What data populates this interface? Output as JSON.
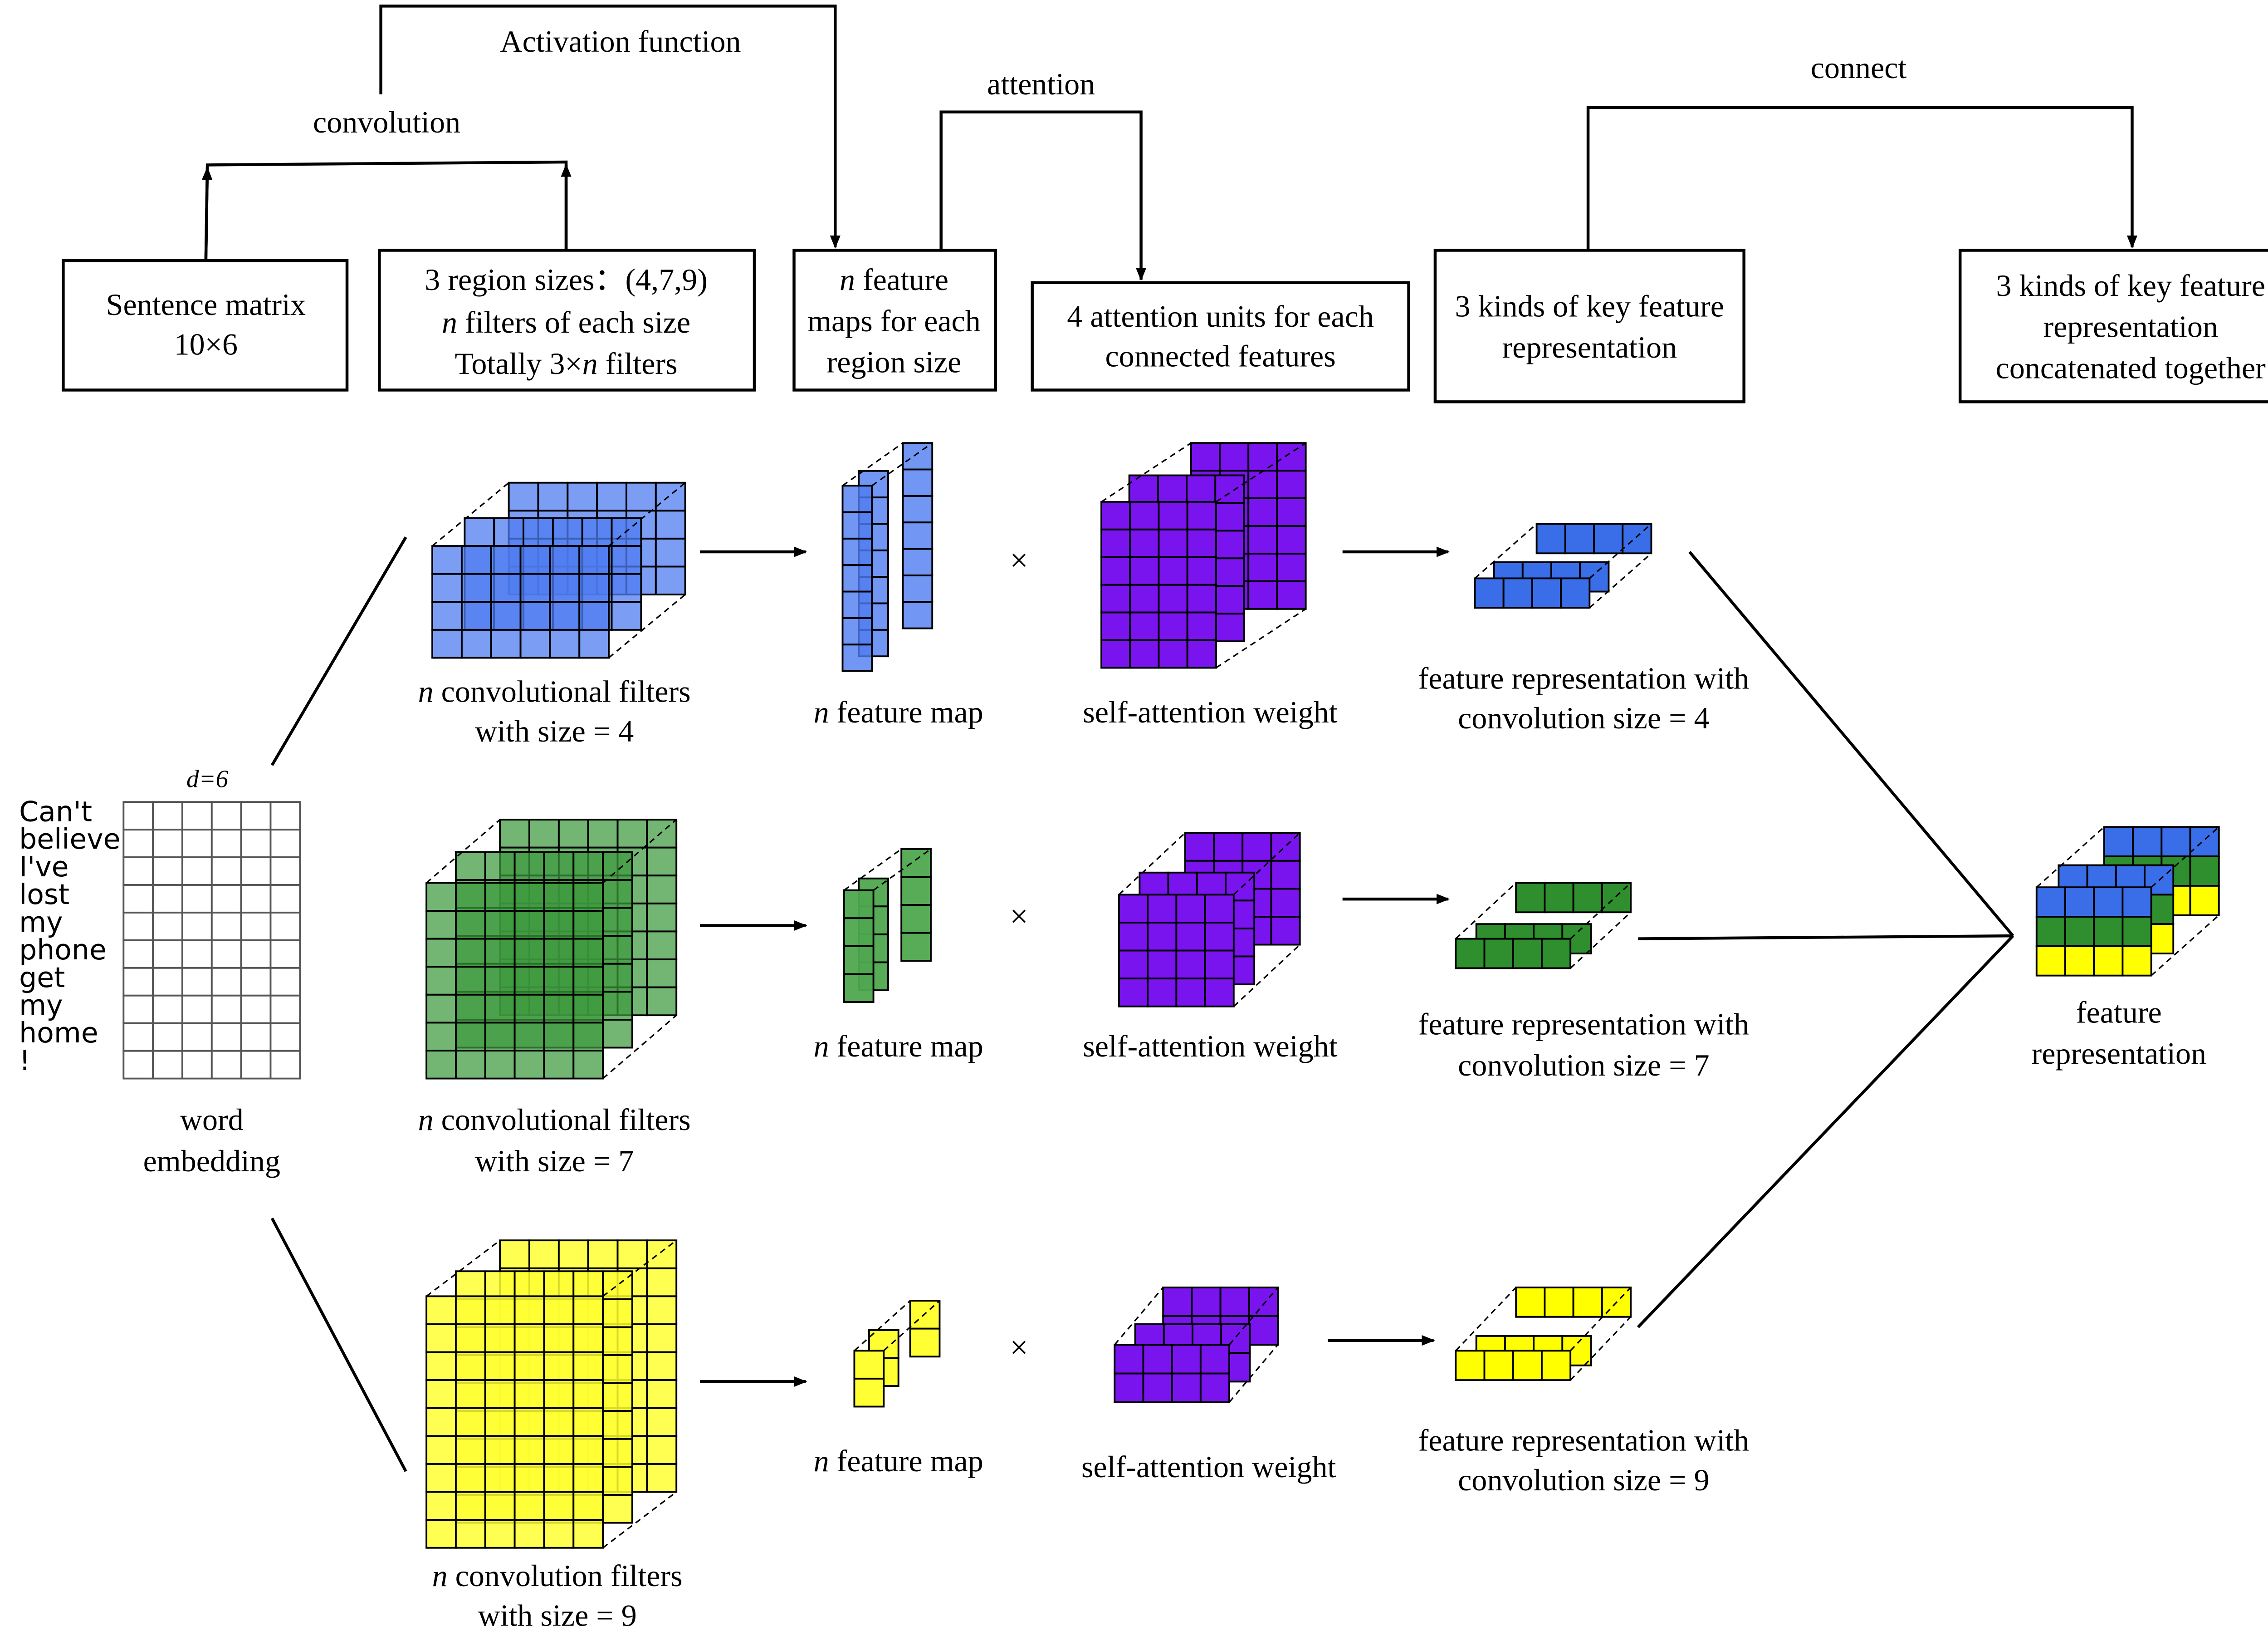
{
  "top_flow": {
    "boxes": {
      "sentence_matrix": [
        "Sentence matrix",
        "10×6"
      ],
      "region_sizes": [
        "3 region sizes：(4,7,9)",
        "n filters of each size",
        "Totally 3×n filters"
      ],
      "feature_maps": [
        "n feature",
        "maps for each",
        "region size"
      ],
      "attention_units": [
        "4 attention units for each",
        "connected features"
      ],
      "key_feature": [
        "3 kinds of key feature",
        "representation"
      ],
      "concatenated": [
        "3 kinds of key feature",
        "representation",
        "concatenated together"
      ]
    },
    "labels": {
      "convolution": "convolution",
      "activation": "Activation function",
      "attention": "attention",
      "connect": "connect"
    }
  },
  "word_embedding": {
    "dim_label": "d=6",
    "words": [
      "Can't",
      "believe",
      "I've",
      "lost",
      "my",
      "phone",
      "get",
      "my",
      "home",
      "!"
    ],
    "caption": [
      "word",
      "embedding"
    ]
  },
  "rows": [
    {
      "color": "#5b82f0",
      "filters_caption": [
        "n convolutional filters",
        "with size = 4"
      ],
      "feature_map_caption": "n feature map",
      "operator": "×",
      "attention_caption": "self-attention weight",
      "representation_caption": [
        "feature representation with",
        "convolution size = 4"
      ]
    },
    {
      "color": "#3d9a3d",
      "filters_caption": [
        "n convolutional filters",
        "with size = 7"
      ],
      "feature_map_caption": "n feature map",
      "operator": "×",
      "attention_caption": "self-attention weight",
      "representation_caption": [
        "feature representation with",
        "convolution size = 7"
      ]
    },
    {
      "color": "#ffff33",
      "filters_caption": [
        "n convolution filters",
        "with size = 9"
      ],
      "feature_map_caption": "n feature map",
      "operator": "×",
      "attention_caption": "self-attention weight",
      "representation_caption": [
        "feature representation with",
        "convolution size = 9"
      ]
    }
  ],
  "final": {
    "caption": [
      "feature",
      "representation"
    ]
  },
  "colors": {
    "blue": "#3a6ee8",
    "green": "#2f8f2f",
    "yellow": "#ffff00",
    "purple": "#7a14ee"
  }
}
